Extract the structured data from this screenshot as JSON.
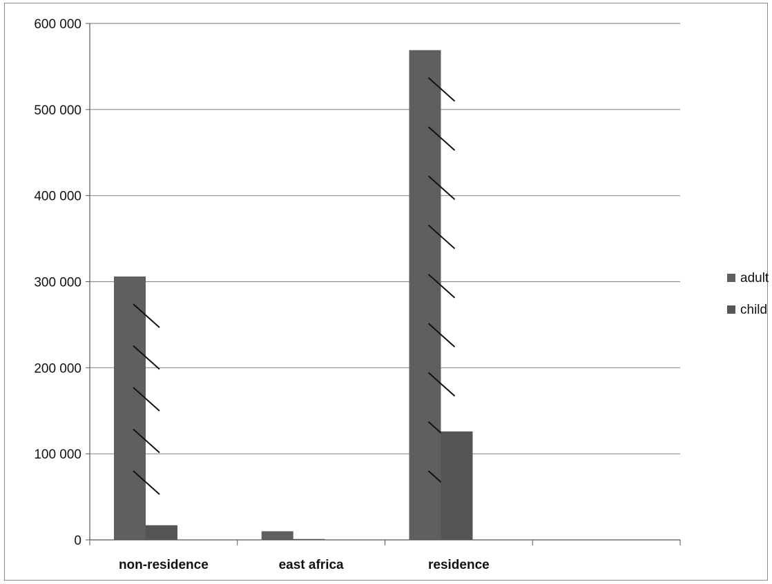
{
  "chart_data": {
    "type": "bar",
    "categories": [
      "non-residence",
      "east africa",
      "residence"
    ],
    "series": [
      {
        "name": "adult",
        "values": [
          306000,
          10000,
          569000
        ],
        "color": "#5f5f5f"
      },
      {
        "name": "child",
        "values": [
          17000,
          1000,
          126000
        ],
        "color": "#555555"
      }
    ],
    "y_ticks": [
      0,
      100000,
      200000,
      300000,
      400000,
      500000,
      600000
    ],
    "y_tick_labels": [
      "0",
      "100 000",
      "200 000",
      "300 000",
      "400 000",
      "500 000",
      "600 000"
    ],
    "ylim": [
      0,
      600000
    ],
    "grid": true,
    "legend_position": "right",
    "title": "",
    "xlabel": "",
    "ylabel": ""
  }
}
